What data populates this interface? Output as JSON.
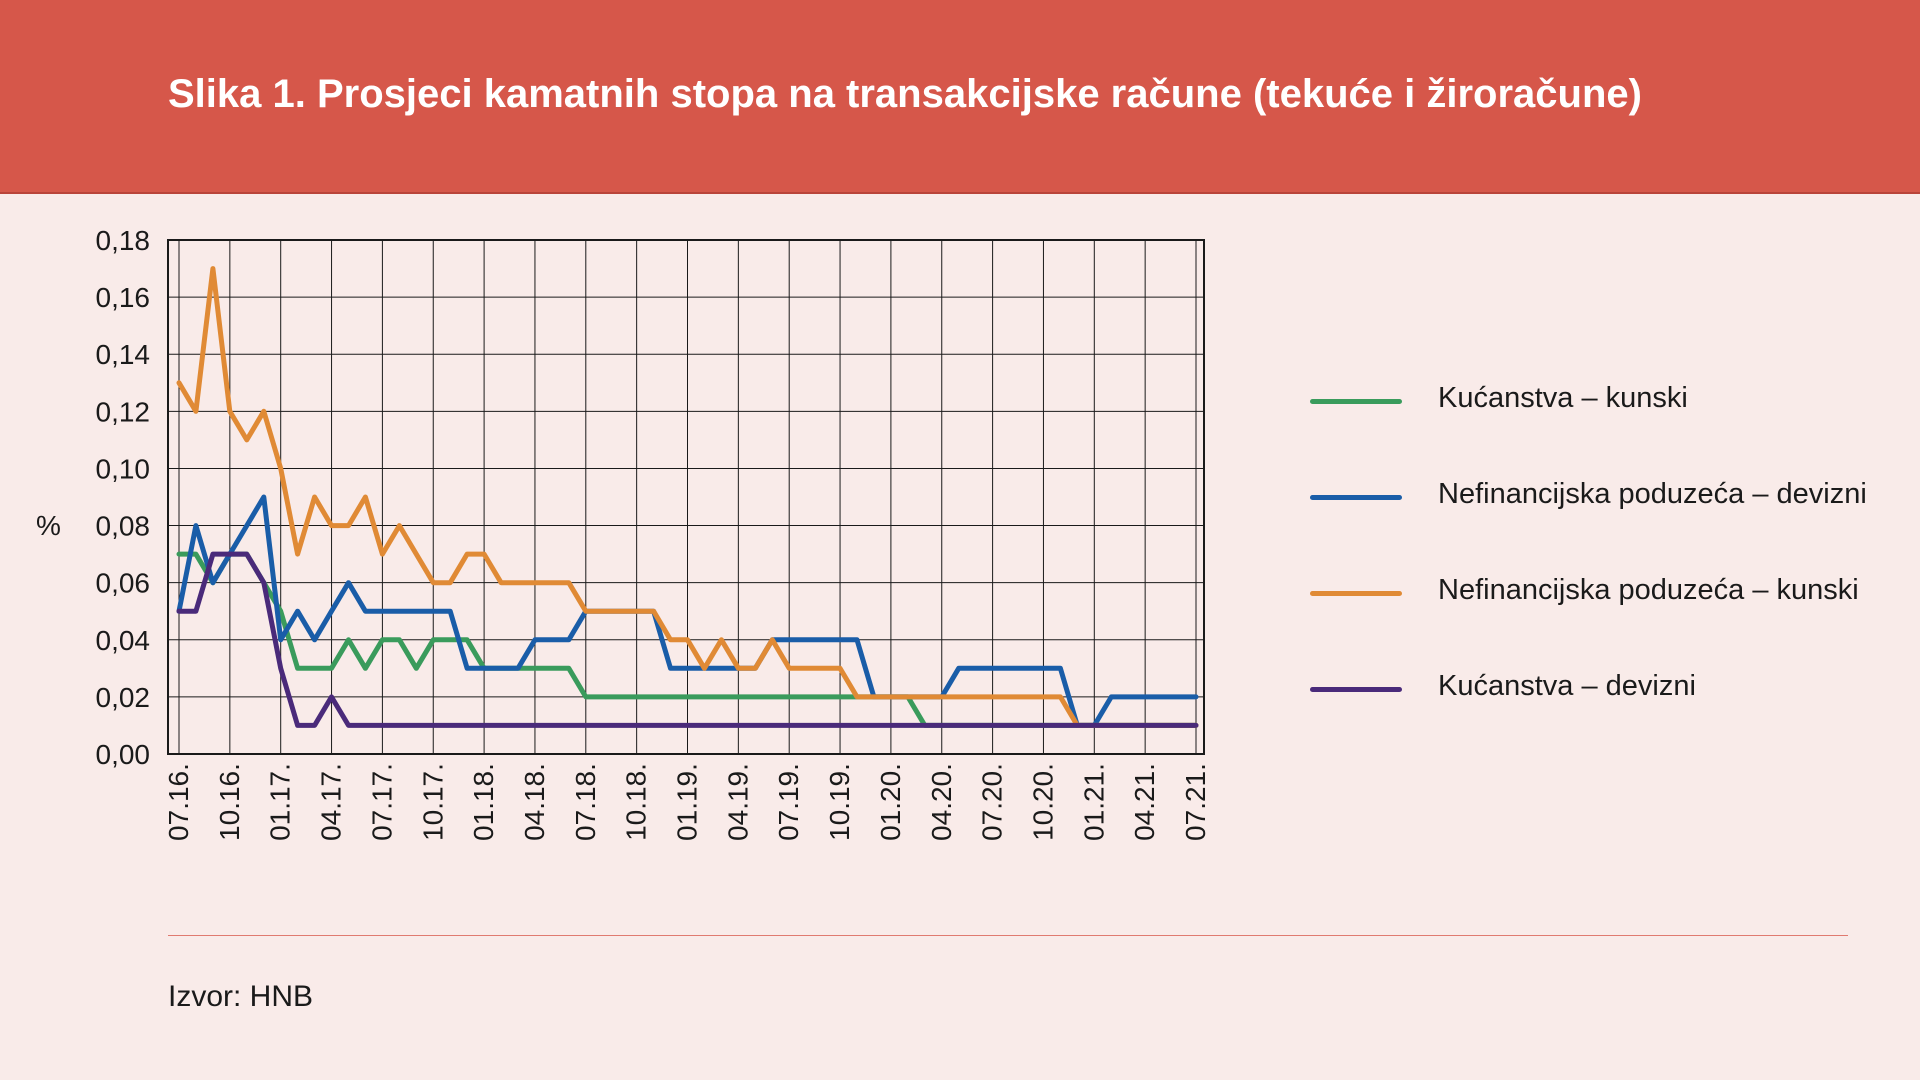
{
  "header": {
    "title": "Slika 1. Prosjeci kamatnih stopa na transakcijske račune (tekuće i žiroračune)"
  },
  "source": "Izvor: HNB",
  "colors": {
    "header": "#d6574a",
    "background": "#f9ebe9",
    "divider": "#e07a70"
  },
  "chart_data": {
    "type": "line",
    "title": "",
    "xlabel": "",
    "ylabel": "%",
    "ylim": [
      0,
      0.18
    ],
    "y_ticks": [
      "0,00",
      "0,02",
      "0,04",
      "0,06",
      "0,08",
      "0,10",
      "0,12",
      "0,14",
      "0,16",
      "0,18"
    ],
    "x_ticks": [
      "07.16.",
      "10.16.",
      "01.17.",
      "04.17.",
      "07.17.",
      "10.17.",
      "01.18.",
      "04.18.",
      "07.18.",
      "10.18.",
      "01.19.",
      "04.19.",
      "07.19.",
      "10.19.",
      "01.20.",
      "04.20.",
      "07.20.",
      "10.20.",
      "01.21.",
      "04.21.",
      "07.21."
    ],
    "x": [
      "07.16.",
      "08.16.",
      "09.16.",
      "10.16.",
      "11.16.",
      "12.16.",
      "01.17.",
      "02.17.",
      "03.17.",
      "04.17.",
      "05.17.",
      "06.17.",
      "07.17.",
      "08.17.",
      "09.17.",
      "10.17.",
      "11.17.",
      "12.17.",
      "01.18.",
      "02.18.",
      "03.18.",
      "04.18.",
      "05.18.",
      "06.18.",
      "07.18.",
      "08.18.",
      "09.18.",
      "10.18.",
      "11.18.",
      "12.18.",
      "01.19.",
      "02.19.",
      "03.19.",
      "04.19.",
      "05.19.",
      "06.19.",
      "07.19.",
      "08.19.",
      "09.19.",
      "10.19.",
      "11.19.",
      "12.19.",
      "01.20.",
      "02.20.",
      "03.20.",
      "04.20.",
      "05.20.",
      "06.20.",
      "07.20.",
      "08.20.",
      "09.20.",
      "10.20.",
      "11.20.",
      "12.20.",
      "01.21.",
      "02.21.",
      "03.21.",
      "04.21.",
      "05.21.",
      "06.21.",
      "07.21."
    ],
    "grid": true,
    "legend_position": "right",
    "series": [
      {
        "name": "Kućanstva – kunski",
        "color": "#3a9b5c",
        "values": [
          0.07,
          0.07,
          0.06,
          0.07,
          0.07,
          0.06,
          0.05,
          0.03,
          0.03,
          0.03,
          0.04,
          0.03,
          0.04,
          0.04,
          0.03,
          0.04,
          0.04,
          0.04,
          0.03,
          0.03,
          0.03,
          0.03,
          0.03,
          0.03,
          0.02,
          0.02,
          0.02,
          0.02,
          0.02,
          0.02,
          0.02,
          0.02,
          0.02,
          0.02,
          0.02,
          0.02,
          0.02,
          0.02,
          0.02,
          0.02,
          0.02,
          0.02,
          0.02,
          0.02,
          0.01,
          0.01,
          0.01,
          0.01,
          0.01,
          0.01,
          0.01,
          0.01,
          0.01,
          0.01,
          0.01,
          0.01,
          0.01,
          0.01,
          0.01,
          0.01,
          0.01
        ]
      },
      {
        "name": "Nefinancijska poduzeća – devizni",
        "color": "#1a5da8",
        "values": [
          0.05,
          0.08,
          0.06,
          0.07,
          0.08,
          0.09,
          0.04,
          0.05,
          0.04,
          0.05,
          0.06,
          0.05,
          0.05,
          0.05,
          0.05,
          0.05,
          0.05,
          0.03,
          0.03,
          0.03,
          0.03,
          0.04,
          0.04,
          0.04,
          0.05,
          0.05,
          0.05,
          0.05,
          0.05,
          0.03,
          0.03,
          0.03,
          0.03,
          0.03,
          0.03,
          0.04,
          0.04,
          0.04,
          0.04,
          0.04,
          0.04,
          0.02,
          0.02,
          0.02,
          0.02,
          0.02,
          0.03,
          0.03,
          0.03,
          0.03,
          0.03,
          0.03,
          0.03,
          0.01,
          0.01,
          0.02,
          0.02,
          0.02,
          0.02,
          0.02,
          0.02
        ]
      },
      {
        "name": "Nefinancijska poduzeća – kunski",
        "color": "#e08a35",
        "values": [
          0.13,
          0.12,
          0.17,
          0.12,
          0.11,
          0.12,
          0.1,
          0.07,
          0.09,
          0.08,
          0.08,
          0.09,
          0.07,
          0.08,
          0.07,
          0.06,
          0.06,
          0.07,
          0.07,
          0.06,
          0.06,
          0.06,
          0.06,
          0.06,
          0.05,
          0.05,
          0.05,
          0.05,
          0.05,
          0.04,
          0.04,
          0.03,
          0.04,
          0.03,
          0.03,
          0.04,
          0.03,
          0.03,
          0.03,
          0.03,
          0.02,
          0.02,
          0.02,
          0.02,
          0.02,
          0.02,
          0.02,
          0.02,
          0.02,
          0.02,
          0.02,
          0.02,
          0.02,
          0.01,
          0.01,
          0.01,
          0.01,
          0.01,
          0.01,
          0.01,
          0.01
        ]
      },
      {
        "name": "Kućanstva – devizni",
        "color": "#4a2a7a",
        "values": [
          0.05,
          0.05,
          0.07,
          0.07,
          0.07,
          0.06,
          0.03,
          0.01,
          0.01,
          0.02,
          0.01,
          0.01,
          0.01,
          0.01,
          0.01,
          0.01,
          0.01,
          0.01,
          0.01,
          0.01,
          0.01,
          0.01,
          0.01,
          0.01,
          0.01,
          0.01,
          0.01,
          0.01,
          0.01,
          0.01,
          0.01,
          0.01,
          0.01,
          0.01,
          0.01,
          0.01,
          0.01,
          0.01,
          0.01,
          0.01,
          0.01,
          0.01,
          0.01,
          0.01,
          0.01,
          0.01,
          0.01,
          0.01,
          0.01,
          0.01,
          0.01,
          0.01,
          0.01,
          0.01,
          0.01,
          0.01,
          0.01,
          0.01,
          0.01,
          0.01,
          0.01
        ]
      }
    ]
  }
}
